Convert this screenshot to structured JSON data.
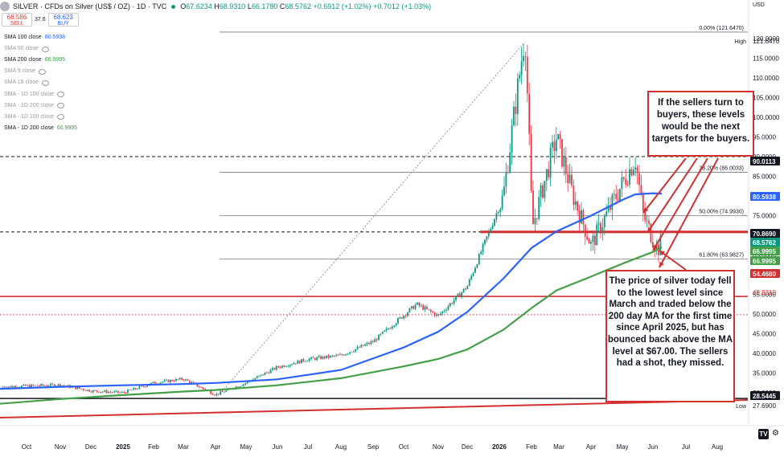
{
  "header": {
    "title": "SILVER · CFDs on Silver (US$ / OZ) · 1D · TVC",
    "ohlc": [
      {
        "label": "O",
        "value": "67.6234"
      },
      {
        "label": "H",
        "value": "68.9310"
      },
      {
        "label": "L",
        "value": "66.1780"
      },
      {
        "label": "C",
        "value": "68.5762"
      }
    ],
    "change": "+0.6912 (+1.02%)",
    "change2": "+0.7012 (+1.03%)"
  },
  "trade": {
    "sell_price": "68.586",
    "sell_label": "SELL",
    "spread": "37.6",
    "buy_price": "68.623",
    "buy_label": "BUY"
  },
  "indicators": [
    {
      "label": "SMA 100 close",
      "value": "80.5938",
      "color": "#2962ff",
      "dim": false
    },
    {
      "label": "SMA 50 close",
      "value": "",
      "dim": true
    },
    {
      "label": "SMA 200 close",
      "value": "66.9995",
      "color": "#43a047",
      "dim": false
    },
    {
      "label": "SMA 9 close",
      "value": "",
      "dim": true
    },
    {
      "label": "SMA 18 close",
      "value": "",
      "dim": true
    },
    {
      "label": "SMA - 1D 100 close",
      "value": "",
      "dim": true
    },
    {
      "label": "SMA - 1D 200 close",
      "value": "",
      "dim": true
    },
    {
      "label": "SMA - 1D 100 close",
      "value": "",
      "dim": true
    },
    {
      "label": "SMA - 1D 200 close",
      "value": "66.9995",
      "color": "#43a047",
      "dim": false
    }
  ],
  "currency": "USD",
  "annotations": {
    "top": "If the sellers turn to buyers, these levels would be the next targets for the buyers.",
    "bottom": "The price of silver today fell to the lowest level since March and traded below the 200 day MA for the first time since April 2025, but has bounced back above the MA level at $67.00. The sellers had a shot, they missed."
  },
  "badges": {
    "tv": "TV"
  },
  "chart_data": {
    "type": "candlestick",
    "x_ticks": [
      "Oct",
      "Nov",
      "Dec",
      "2025",
      "Feb",
      "Mar",
      "Apr",
      "May",
      "Jun",
      "Jul",
      "Aug",
      "Sep",
      "Oct",
      "Nov",
      "Dec",
      "2026",
      "Feb",
      "Mar",
      "Apr",
      "May",
      "Jun",
      "Jul",
      "Aug"
    ],
    "y_ticks": [
      30.0,
      35.0,
      40.0,
      45.0,
      50.0,
      55.0,
      60.0,
      65.0,
      70.0,
      75.0,
      80.0,
      85.0,
      90.0,
      95.0,
      100.0,
      105.0,
      110.0,
      115.0,
      120.0
    ],
    "y_tick_labels": [
      "30.0000",
      "35.0000",
      "40.0000",
      "45.0000",
      "50.0000",
      "55.0000",
      "60.0000",
      "65.0000",
      "70.0000",
      "75.0000",
      "80.0000",
      "85.0000",
      "90.0000",
      "95.0000",
      "100.0000",
      "105.0000",
      "110.0000",
      "115.0000",
      "120.0000"
    ],
    "ylim": [
      24.5,
      126
    ],
    "price_path": [
      [
        "Oct",
        31.5
      ],
      [
        "Nov",
        32.0
      ],
      [
        "Dec",
        30.5
      ],
      [
        "2025",
        30.0
      ],
      [
        "Feb",
        32.5
      ],
      [
        "Mar",
        33.5
      ],
      [
        "Apr",
        29.5
      ],
      [
        "May",
        32.5
      ],
      [
        "Jun",
        36.5
      ],
      [
        "Jul",
        38.5
      ],
      [
        "Aug",
        39.5
      ],
      [
        "Sep",
        43.0
      ],
      [
        "Oct",
        52.5
      ],
      [
        "Nov",
        49.5
      ],
      [
        "Dec",
        57.0
      ],
      [
        "2026",
        80.0
      ],
      [
        "Feb",
        121.6
      ],
      [
        "Feb",
        72.0
      ],
      [
        "Mar",
        95.0
      ],
      [
        "Mar",
        80.5
      ],
      [
        "Apr",
        67.5
      ],
      [
        "May",
        89.5
      ],
      [
        "Jun",
        75.0
      ],
      [
        "Jun",
        66.2
      ],
      [
        "Jun",
        68.5762
      ]
    ],
    "series": [
      {
        "name": "SMA 100 close",
        "color": "#2962ff",
        "last": 80.5938
      },
      {
        "name": "SMA 200 close",
        "color": "#43a047",
        "last": 66.9995
      }
    ],
    "fibonacci": [
      {
        "label": "0.00% (121.6470)",
        "value": 121.647
      },
      {
        "label": "38.20% (86.0033)",
        "value": 86.0033
      },
      {
        "label": "50.00% (74.9930)",
        "value": 74.993
      },
      {
        "label": "61.80% (63.9827)",
        "value": 63.9827
      }
    ],
    "horizontal_levels": [
      {
        "value": 90.0113,
        "label": "90.0113",
        "style": "dashed",
        "color": "#131722"
      },
      {
        "value": 70.869,
        "label": "70.8690",
        "style": "dashed",
        "color": "#131722"
      },
      {
        "value": 54.468,
        "label": "54.4680",
        "style": "solid",
        "color": "#d32f2f"
      },
      {
        "value": 49.831,
        "label": "49.8310",
        "style": "dotted",
        "color": "#d32f2f"
      },
      {
        "value": 28.5445,
        "label": "28.5445",
        "style": "solid",
        "color": "#131722"
      }
    ],
    "price_labels": [
      {
        "value": 121.647,
        "text": "121.6470",
        "bg": "#ffffff",
        "fg": "#131722",
        "tag": "High"
      },
      {
        "value": 90.0113,
        "text": "90.0113",
        "bg": "#131722",
        "fg": "#ffffff"
      },
      {
        "value": 80.5938,
        "text": "80.5938",
        "bg": "#2962ff",
        "fg": "#ffffff"
      },
      {
        "value": 70.869,
        "text": "70.8690",
        "bg": "#131722",
        "fg": "#ffffff"
      },
      {
        "value": 68.5762,
        "text": "68.5762",
        "bg": "#089981",
        "fg": "#ffffff"
      },
      {
        "value": 66.9995,
        "text": "66.9995",
        "bg": "#43a047",
        "fg": "#ffffff"
      },
      {
        "value": 66.9995,
        "text": "66.9995",
        "bg": "#43a047",
        "fg": "#ffffff"
      },
      {
        "value": 54.468,
        "text": "54.4680",
        "bg": "#d32f2f",
        "fg": "#ffffff"
      },
      {
        "value": 49.831,
        "text": "49.8310",
        "bg": "#ffffff",
        "fg": "#d32f2f"
      },
      {
        "value": 28.5445,
        "text": "28.5445",
        "bg": "#131722",
        "fg": "#ffffff"
      },
      {
        "value": 27.69,
        "text": "27.6900",
        "bg": "#ffffff",
        "fg": "#131722",
        "tag": "Low"
      }
    ],
    "grid": false
  }
}
